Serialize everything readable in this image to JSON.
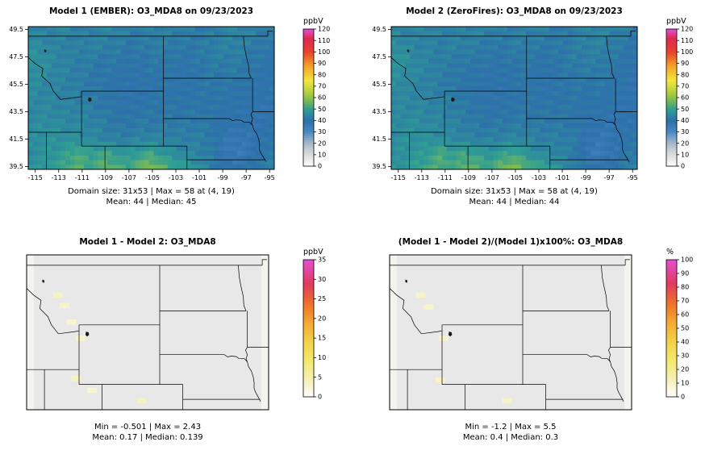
{
  "geo": {
    "xlim": [
      -115.6,
      -94.6
    ],
    "ylim": [
      39.3,
      49.7
    ],
    "x_ticks": [
      -115,
      -113,
      -111,
      -109,
      -107,
      -105,
      -103,
      -101,
      -99,
      -97,
      -95
    ],
    "y_ticks": [
      39.5,
      41.5,
      43.5,
      45.5,
      47.5,
      49.5
    ]
  },
  "chart_data": [
    {
      "type": "heatmap",
      "panel": "top-left",
      "title": "Model 1 (EMBER): O3_MDA8 on 09/23/2023",
      "stats_line1": "Domain size: 31x53 | Max = 58 at (4, 19)",
      "stats_line2": "Mean: 44 |  Median: 45",
      "colorbar": {
        "label": "ppbV",
        "min": 0,
        "max": 120,
        "tick_step": 10,
        "stops": [
          {
            "v": 0,
            "c": "#ffffff"
          },
          {
            "v": 8,
            "c": "#e3e3e3"
          },
          {
            "v": 15,
            "c": "#c6ccd2"
          },
          {
            "v": 22,
            "c": "#96b1c9"
          },
          {
            "v": 30,
            "c": "#4a8ac4"
          },
          {
            "v": 40,
            "c": "#2d70aa"
          },
          {
            "v": 50,
            "c": "#2f9e94"
          },
          {
            "v": 58,
            "c": "#7dbb50"
          },
          {
            "v": 66,
            "c": "#b9d23e"
          },
          {
            "v": 75,
            "c": "#f2e73c"
          },
          {
            "v": 88,
            "c": "#f5a028"
          },
          {
            "v": 100,
            "c": "#e8432c"
          },
          {
            "v": 112,
            "c": "#dd2a52"
          },
          {
            "v": 120,
            "c": "#e44fd2"
          }
        ]
      },
      "grid": {
        "rows_lat": [
          49,
          48,
          47,
          46,
          45,
          44,
          43,
          42,
          41,
          40
        ],
        "cols_lon_from_to": [
          -115,
          -95
        ],
        "values": [
          [
            45,
            44,
            44,
            45,
            44,
            43,
            44,
            45,
            44,
            43,
            43,
            44,
            44,
            43,
            42,
            43,
            44,
            45,
            44,
            43,
            42
          ],
          [
            46,
            45,
            44,
            44,
            43,
            44,
            44,
            43,
            42,
            42,
            43,
            43,
            42,
            42,
            42,
            43,
            44,
            44,
            43,
            42,
            41
          ],
          [
            48,
            47,
            45,
            44,
            43,
            43,
            42,
            42,
            41,
            41,
            42,
            42,
            41,
            41,
            42,
            43,
            43,
            43,
            42,
            41,
            40
          ],
          [
            47,
            46,
            45,
            44,
            43,
            42,
            41,
            41,
            40,
            40,
            41,
            41,
            40,
            40,
            41,
            42,
            42,
            42,
            41,
            40,
            40
          ],
          [
            46,
            45,
            44,
            44,
            43,
            42,
            41,
            40,
            39,
            40,
            40,
            41,
            40,
            40,
            41,
            41,
            41,
            41,
            40,
            40,
            39
          ],
          [
            45,
            45,
            45,
            44,
            44,
            43,
            42,
            41,
            40,
            40,
            41,
            41,
            41,
            41,
            41,
            41,
            40,
            40,
            40,
            39,
            39
          ],
          [
            45,
            46,
            46,
            45,
            45,
            44,
            43,
            42,
            41,
            42,
            42,
            42,
            42,
            42,
            42,
            41,
            40,
            39,
            39,
            39,
            40
          ],
          [
            46,
            47,
            47,
            47,
            46,
            45,
            44,
            43,
            43,
            44,
            44,
            44,
            43,
            43,
            43,
            42,
            38,
            37,
            38,
            40,
            41
          ],
          [
            46,
            47,
            48,
            50,
            53,
            50,
            52,
            50,
            48,
            50,
            52,
            48,
            46,
            45,
            44,
            42,
            37,
            36,
            38,
            41,
            42
          ],
          [
            47,
            48,
            50,
            52,
            54,
            52,
            55,
            54,
            52,
            57,
            58,
            55,
            52,
            49,
            46,
            43,
            40,
            39,
            41,
            43,
            44
          ]
        ]
      }
    },
    {
      "type": "heatmap",
      "panel": "top-right",
      "title": "Model 2 (ZeroFires): O3_MDA8 on 09/23/2023",
      "stats_line1": "Domain size: 31x53 | Max = 58 at (4, 19)",
      "stats_line2": "Mean: 44 |  Median: 44",
      "colorbar": {
        "label": "ppbV",
        "min": 0,
        "max": 120,
        "tick_step": 10,
        "stops": [
          {
            "v": 0,
            "c": "#ffffff"
          },
          {
            "v": 8,
            "c": "#e3e3e3"
          },
          {
            "v": 15,
            "c": "#c6ccd2"
          },
          {
            "v": 22,
            "c": "#96b1c9"
          },
          {
            "v": 30,
            "c": "#4a8ac4"
          },
          {
            "v": 40,
            "c": "#2d70aa"
          },
          {
            "v": 50,
            "c": "#2f9e94"
          },
          {
            "v": 58,
            "c": "#7dbb50"
          },
          {
            "v": 66,
            "c": "#b9d23e"
          },
          {
            "v": 75,
            "c": "#f2e73c"
          },
          {
            "v": 88,
            "c": "#f5a028"
          },
          {
            "v": 100,
            "c": "#e8432c"
          },
          {
            "v": 112,
            "c": "#dd2a52"
          },
          {
            "v": 120,
            "c": "#e44fd2"
          }
        ]
      },
      "grid_same_as": 0
    },
    {
      "type": "heatmap",
      "panel": "bottom-left",
      "title": "Model 1 - Model 2: O3_MDA8",
      "stats_line1": "Min = -0.501 | Max = 2.43",
      "stats_line2": "Mean: 0.17 |  Median: 0.139",
      "colorbar": {
        "label": "ppbV",
        "min": 0,
        "max": 35,
        "tick_step": 5,
        "stops": [
          {
            "v": 0,
            "c": "#ffffff"
          },
          {
            "v": 4,
            "c": "#f6f0bc"
          },
          {
            "v": 9,
            "c": "#f3ea6e"
          },
          {
            "v": 14,
            "c": "#f2d348"
          },
          {
            "v": 19,
            "c": "#f4a832"
          },
          {
            "v": 24,
            "c": "#ee6f2b"
          },
          {
            "v": 29,
            "c": "#e23a60"
          },
          {
            "v": 35,
            "c": "#e44fd2"
          }
        ]
      },
      "base_color": "#e8e8e8",
      "edge_color": "#f3f3f0",
      "specks": [
        {
          "lon": -112.9,
          "lat": 47.0,
          "frac": 0.1
        },
        {
          "lon": -112.3,
          "lat": 46.3,
          "frac": 0.09
        },
        {
          "lon": -111.7,
          "lat": 45.2,
          "frac": 0.08
        },
        {
          "lon": -110.9,
          "lat": 44.1,
          "frac": 0.09
        },
        {
          "lon": -111.3,
          "lat": 41.4,
          "frac": 0.1
        },
        {
          "lon": -105.6,
          "lat": 39.9,
          "frac": 0.11
        },
        {
          "lon": -109.9,
          "lat": 40.6,
          "frac": 0.08
        }
      ]
    },
    {
      "type": "heatmap",
      "panel": "bottom-right",
      "title": "(Model 1 - Model 2)/(Model 1)x100%: O3_MDA8",
      "stats_line1": "Min = -1.2 | Max = 5.5",
      "stats_line2": "Mean: 0.4 |  Median: 0.3",
      "colorbar": {
        "label": "%",
        "min": 0,
        "max": 100,
        "tick_step": 10,
        "stops": [
          {
            "v": 0,
            "c": "#ffffff"
          },
          {
            "v": 12,
            "c": "#f6f0bc"
          },
          {
            "v": 26,
            "c": "#f3ea6e"
          },
          {
            "v": 40,
            "c": "#f2d348"
          },
          {
            "v": 55,
            "c": "#f4a832"
          },
          {
            "v": 69,
            "c": "#ee6f2b"
          },
          {
            "v": 83,
            "c": "#e23a60"
          },
          {
            "v": 100,
            "c": "#e44fd2"
          }
        ]
      },
      "base_color": "#e8e8e8",
      "edge_color": "#f3f3f0",
      "specks": [
        {
          "lon": -112.9,
          "lat": 47.0,
          "frac": 0.1
        },
        {
          "lon": -112.2,
          "lat": 46.2,
          "frac": 0.09
        },
        {
          "lon": -110.9,
          "lat": 44.1,
          "frac": 0.09
        },
        {
          "lon": -111.2,
          "lat": 41.3,
          "frac": 0.1
        },
        {
          "lon": -105.4,
          "lat": 39.9,
          "frac": 0.1
        }
      ]
    }
  ]
}
